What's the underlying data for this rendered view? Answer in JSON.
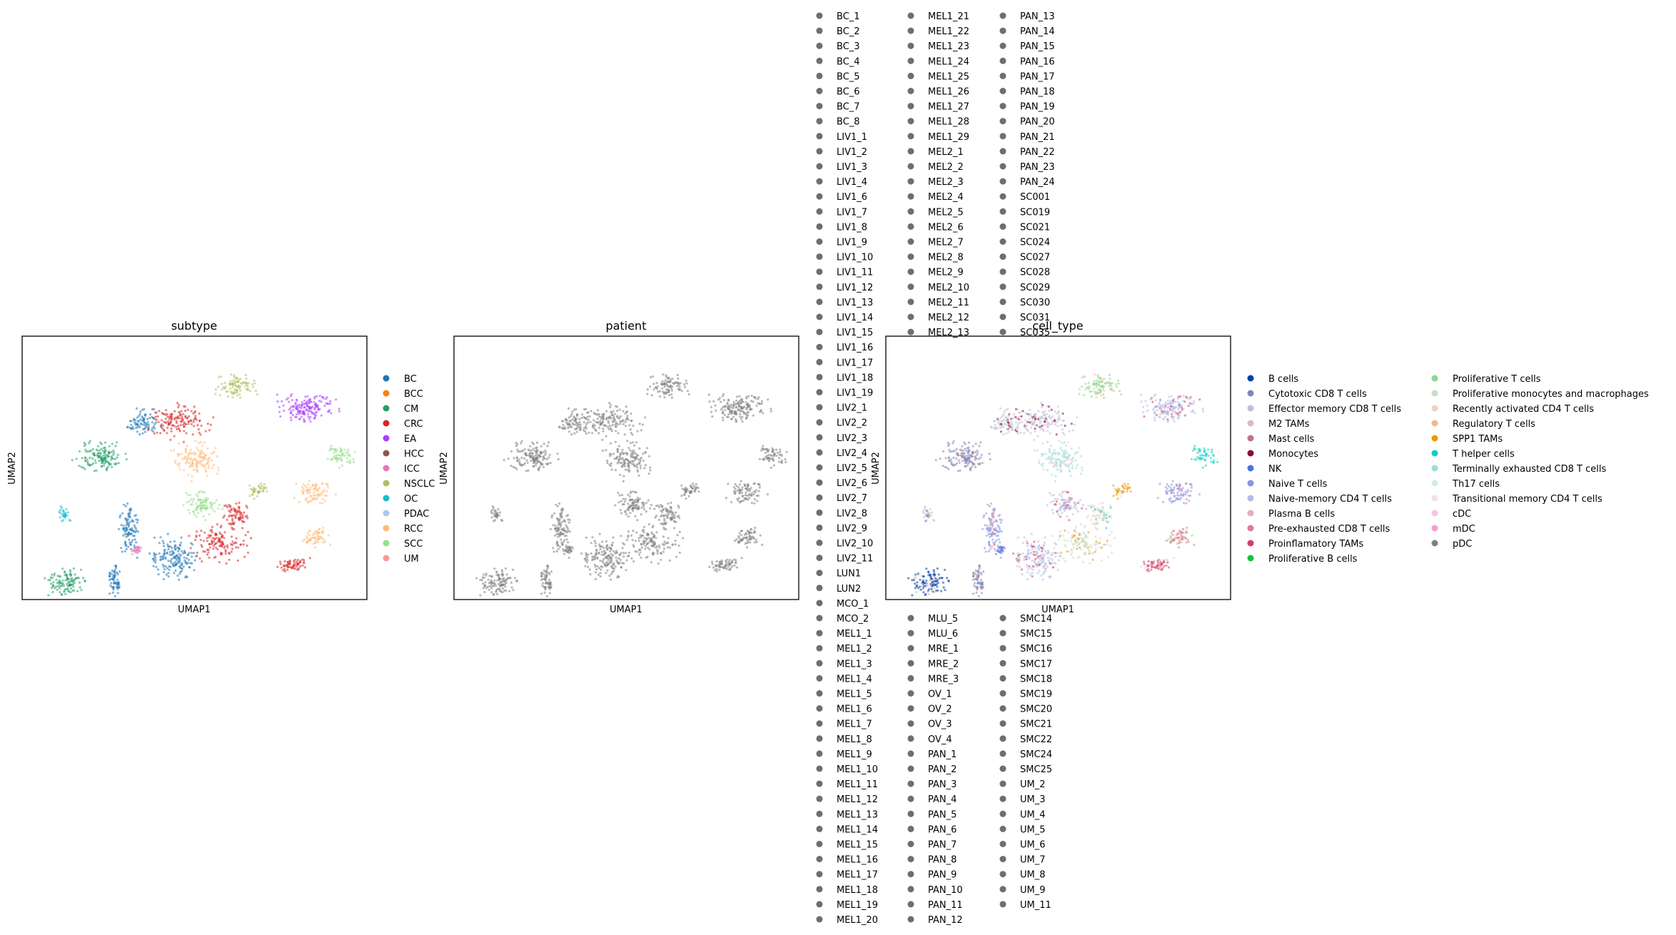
{
  "chart_data": [
    {
      "type": "scatter",
      "title": "subtype",
      "xlabel": "UMAP1",
      "ylabel": "UMAP2",
      "grid": false,
      "legend_placement": "right",
      "legend": [
        {
          "label": "BC",
          "color": "#1f77b4"
        },
        {
          "label": "BCC",
          "color": "#ff7f0e"
        },
        {
          "label": "CM",
          "color": "#279e68"
        },
        {
          "label": "CRC",
          "color": "#d62728"
        },
        {
          "label": "EA",
          "color": "#aa40fc"
        },
        {
          "label": "HCC",
          "color": "#8c564b"
        },
        {
          "label": "ICC",
          "color": "#e377c2"
        },
        {
          "label": "NSCLC",
          "color": "#b5bd61"
        },
        {
          "label": "OC",
          "color": "#17becf"
        },
        {
          "label": "PDAC",
          "color": "#aec7e8"
        },
        {
          "label": "RCC",
          "color": "#ffbb78"
        },
        {
          "label": "SCC",
          "color": "#98df8a"
        },
        {
          "label": "UM",
          "color": "#ff9896"
        }
      ]
    },
    {
      "type": "scatter",
      "title": "patient",
      "xlabel": "UMAP1",
      "ylabel": "UMAP2",
      "grid": false,
      "legend_placement": "right (overflowing, 3 columns)",
      "point_color": "#808080",
      "legend_color": "#6e6e6e",
      "legend_columns": [
        [
          "BC_1",
          "BC_2",
          "BC_3",
          "BC_4",
          "BC_5",
          "BC_6",
          "BC_7",
          "BC_8",
          "LIV1_1",
          "LIV1_2",
          "LIV1_3",
          "LIV1_4",
          "LIV1_6",
          "LIV1_7",
          "LIV1_8",
          "LIV1_9",
          "LIV1_10",
          "LIV1_11",
          "LIV1_12",
          "LIV1_13",
          "LIV1_14",
          "LIV1_15",
          "LIV1_16",
          "LIV1_17",
          "LIV1_18",
          "LIV1_19",
          "LIV2_1",
          "LIV2_2",
          "LIV2_3",
          "LIV2_4",
          "LIV2_5",
          "LIV2_6",
          "LIV2_7",
          "LIV2_8",
          "LIV2_9",
          "LIV2_10",
          "LIV2_11",
          "LUN1",
          "LUN2",
          "MCO_1",
          "MCO_2",
          "MEL1_1",
          "MEL1_2",
          "MEL1_3",
          "MEL1_4",
          "MEL1_5",
          "MEL1_6",
          "MEL1_7",
          "MEL1_8",
          "MEL1_9",
          "MEL1_10",
          "MEL1_11",
          "MEL1_12",
          "MEL1_13",
          "MEL1_14",
          "MEL1_15",
          "MEL1_16",
          "MEL1_17",
          "MEL1_18",
          "MEL1_19",
          "MEL1_20"
        ],
        [
          "MEL1_21",
          "MEL1_22",
          "MEL1_23",
          "MEL1_24",
          "MEL1_25",
          "MEL1_26",
          "MEL1_27",
          "MEL1_28",
          "MEL1_29",
          "MEL2_1",
          "MEL2_2",
          "MEL2_3",
          "MEL2_4",
          "MEL2_5",
          "MEL2_6",
          "MEL2_7",
          "MEL2_8",
          "MEL2_9",
          "MEL2_10",
          "MEL2_11",
          "MEL2_12",
          "MEL2_13",
          "MLU_5",
          "MLU_6",
          "MRE_1",
          "MRE_2",
          "MRE_3",
          "OV_1",
          "OV_2",
          "OV_3",
          "OV_4",
          "PAN_1",
          "PAN_2",
          "PAN_3",
          "PAN_4",
          "PAN_5",
          "PAN_6",
          "PAN_7",
          "PAN_8",
          "PAN_9",
          "PAN_10",
          "PAN_11",
          "PAN_12"
        ],
        [
          "PAN_13",
          "PAN_14",
          "PAN_15",
          "PAN_16",
          "PAN_17",
          "PAN_18",
          "PAN_19",
          "PAN_20",
          "PAN_21",
          "PAN_22",
          "PAN_23",
          "PAN_24",
          "SC001",
          "SC019",
          "SC021",
          "SC024",
          "SC027",
          "SC028",
          "SC029",
          "SC030",
          "SC031",
          "SC035",
          "SMC14",
          "SMC15",
          "SMC16",
          "SMC17",
          "SMC18",
          "SMC19",
          "SMC20",
          "SMC21",
          "SMC22",
          "SMC24",
          "SMC25",
          "UM_2",
          "UM_3",
          "UM_4",
          "UM_5",
          "UM_6",
          "UM_7",
          "UM_8",
          "UM_9",
          "UM_11"
        ]
      ]
    },
    {
      "type": "scatter",
      "title": "cell_type",
      "xlabel": "UMAP1",
      "ylabel": "UMAP2",
      "grid": false,
      "legend_placement": "right (2 columns)",
      "legend": [
        {
          "label": "B cells",
          "color": "#023fa5"
        },
        {
          "label": "Cytotoxic CD8 T cells",
          "color": "#7d87b9"
        },
        {
          "label": "Effector memory CD8 T cells",
          "color": "#bec1d4"
        },
        {
          "label": "M2 TAMs",
          "color": "#d6bcc0"
        },
        {
          "label": "Mast cells",
          "color": "#bb7784"
        },
        {
          "label": "Monocytes",
          "color": "#8e063b"
        },
        {
          "label": "NK",
          "color": "#4a6fe3"
        },
        {
          "label": "Naive T cells",
          "color": "#8595e1"
        },
        {
          "label": "Naive-memory CD4 T cells",
          "color": "#b5bbe3"
        },
        {
          "label": "Plasma B cells",
          "color": "#e6afb9"
        },
        {
          "label": "Pre-exhausted CD8 T cells",
          "color": "#e07b91"
        },
        {
          "label": "Proinflamatory TAMs",
          "color": "#d33f6a"
        },
        {
          "label": "Proliferative B cells",
          "color": "#11c638"
        },
        {
          "label": "Proliferative T cells",
          "color": "#8dd593"
        },
        {
          "label": "Proliferative monocytes and macrophages",
          "color": "#c6dec7"
        },
        {
          "label": "Recently activated CD4 T cells",
          "color": "#ead3c6"
        },
        {
          "label": "Regulatory T cells",
          "color": "#f0b98d"
        },
        {
          "label": "SPP1 TAMs",
          "color": "#ef9708"
        },
        {
          "label": "T helper cells",
          "color": "#0fcfc0"
        },
        {
          "label": "Terminally exhausted CD8 T cells",
          "color": "#9cded6"
        },
        {
          "label": "Th17 cells",
          "color": "#d5eae7"
        },
        {
          "label": "Transitional memory CD4 T cells",
          "color": "#f3e1eb"
        },
        {
          "label": "cDC",
          "color": "#f6c4e1"
        },
        {
          "label": "mDC",
          "color": "#f79cd4"
        },
        {
          "label": "pDC",
          "color": "#7f7f7f"
        }
      ]
    }
  ]
}
